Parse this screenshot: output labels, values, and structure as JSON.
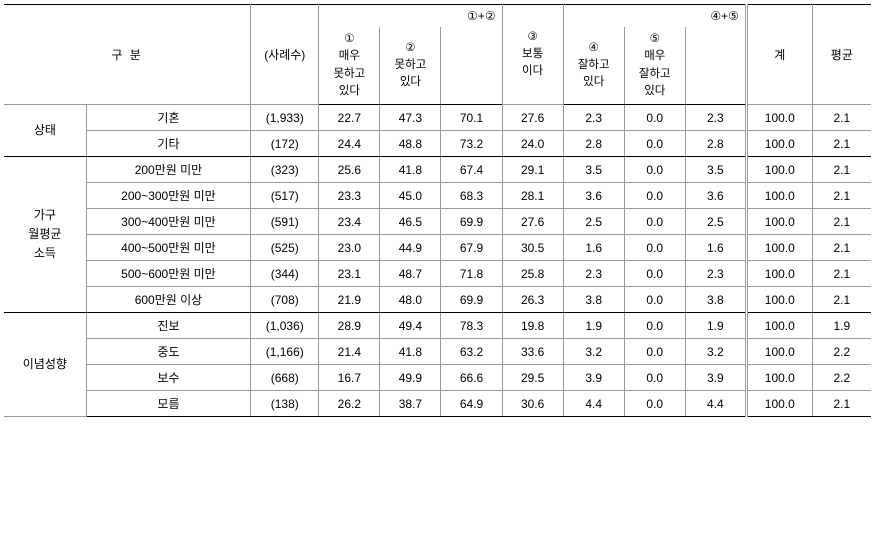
{
  "header": {
    "gubun": "구        분",
    "cases": "(사례수)",
    "combo12": "①+②",
    "combo45": "④+⑤",
    "opt1_num": "①",
    "opt1_l1": "매우",
    "opt1_l2": "못하고",
    "opt1_l3": "있다",
    "opt2_num": "②",
    "opt2_l1": "못하고",
    "opt2_l2": "있다",
    "opt3_num": "③",
    "opt3_l1": "보통",
    "opt3_l2": "이다",
    "opt4_num": "④",
    "opt4_l1": "잘하고",
    "opt4_l2": "있다",
    "opt5_num": "⑤",
    "opt5_l1": "매우",
    "opt5_l2": "잘하고",
    "opt5_l3": "있다",
    "total": "계",
    "avg": "평균"
  },
  "groups": [
    {
      "label": "상태",
      "rows": [
        {
          "label": "기혼",
          "n": "(1,933)",
          "v1": "22.7",
          "v2": "47.3",
          "s12": "70.1",
          "v3": "27.6",
          "v4": "2.3",
          "v5": "0.0",
          "s45": "2.3",
          "tot": "100.0",
          "avg": "2.1"
        },
        {
          "label": "기타",
          "n": "(172)",
          "v1": "24.4",
          "v2": "48.8",
          "s12": "73.2",
          "v3": "24.0",
          "v4": "2.8",
          "v5": "0.0",
          "s45": "2.8",
          "tot": "100.0",
          "avg": "2.1"
        }
      ]
    },
    {
      "label": "가구\n월평균\n소득",
      "rows": [
        {
          "label": "200만원 미만",
          "n": "(323)",
          "v1": "25.6",
          "v2": "41.8",
          "s12": "67.4",
          "v3": "29.1",
          "v4": "3.5",
          "v5": "0.0",
          "s45": "3.5",
          "tot": "100.0",
          "avg": "2.1"
        },
        {
          "label": "200~300만원 미만",
          "n": "(517)",
          "v1": "23.3",
          "v2": "45.0",
          "s12": "68.3",
          "v3": "28.1",
          "v4": "3.6",
          "v5": "0.0",
          "s45": "3.6",
          "tot": "100.0",
          "avg": "2.1"
        },
        {
          "label": "300~400만원 미만",
          "n": "(591)",
          "v1": "23.4",
          "v2": "46.5",
          "s12": "69.9",
          "v3": "27.6",
          "v4": "2.5",
          "v5": "0.0",
          "s45": "2.5",
          "tot": "100.0",
          "avg": "2.1"
        },
        {
          "label": "400~500만원 미만",
          "n": "(525)",
          "v1": "23.0",
          "v2": "44.9",
          "s12": "67.9",
          "v3": "30.5",
          "v4": "1.6",
          "v5": "0.0",
          "s45": "1.6",
          "tot": "100.0",
          "avg": "2.1"
        },
        {
          "label": "500~600만원 미만",
          "n": "(344)",
          "v1": "23.1",
          "v2": "48.7",
          "s12": "71.8",
          "v3": "25.8",
          "v4": "2.3",
          "v5": "0.0",
          "s45": "2.3",
          "tot": "100.0",
          "avg": "2.1"
        },
        {
          "label": "600만원 이상",
          "n": "(708)",
          "v1": "21.9",
          "v2": "48.0",
          "s12": "69.9",
          "v3": "26.3",
          "v4": "3.8",
          "v5": "0.0",
          "s45": "3.8",
          "tot": "100.0",
          "avg": "2.1"
        }
      ]
    },
    {
      "label": "이념성향",
      "rows": [
        {
          "label": "진보",
          "n": "(1,036)",
          "v1": "28.9",
          "v2": "49.4",
          "s12": "78.3",
          "v3": "19.8",
          "v4": "1.9",
          "v5": "0.0",
          "s45": "1.9",
          "tot": "100.0",
          "avg": "1.9"
        },
        {
          "label": "중도",
          "n": "(1,166)",
          "v1": "21.4",
          "v2": "41.8",
          "s12": "63.2",
          "v3": "33.6",
          "v4": "3.2",
          "v5": "0.0",
          "s45": "3.2",
          "tot": "100.0",
          "avg": "2.2"
        },
        {
          "label": "보수",
          "n": "(668)",
          "v1": "16.7",
          "v2": "49.9",
          "s12": "66.6",
          "v3": "29.5",
          "v4": "3.9",
          "v5": "0.0",
          "s45": "3.9",
          "tot": "100.0",
          "avg": "2.2"
        },
        {
          "label": "모름",
          "n": "(138)",
          "v1": "26.2",
          "v2": "38.7",
          "s12": "64.9",
          "v3": "30.6",
          "v4": "4.4",
          "v5": "0.0",
          "s45": "4.4",
          "tot": "100.0",
          "avg": "2.1"
        }
      ]
    }
  ]
}
